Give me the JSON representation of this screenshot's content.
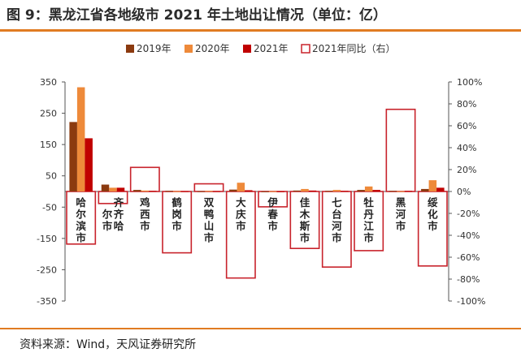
{
  "title": "图 9：黑龙江省各地级市 2021 年土地出让情况（单位：亿）",
  "source": "资料来源：Wind，天风证券研究所",
  "chart_data": {
    "type": "bar+line",
    "categories": [
      "哈尔滨市",
      "齐齐哈尔市",
      "鸡西市",
      "鹤岗市",
      "双鸭山市",
      "大庆市",
      "伊春市",
      "佳木斯市",
      "七台河市",
      "牡丹江市",
      "黑河市",
      "绥化市"
    ],
    "series": [
      {
        "name": "2019年",
        "axis": "left",
        "type": "bar",
        "color": "#8b3a0f",
        "values": [
          222,
          22,
          5,
          2,
          1,
          6,
          0.5,
          3,
          2,
          5,
          2,
          8
        ]
      },
      {
        "name": "2020年",
        "axis": "left",
        "type": "bar",
        "color": "#ee8a3a",
        "values": [
          333,
          12,
          3,
          1,
          2,
          28,
          1,
          8,
          5,
          16,
          1,
          36
        ]
      },
      {
        "name": "2021年",
        "axis": "left",
        "type": "bar",
        "color": "#c00000",
        "values": [
          170,
          12,
          2,
          1,
          1,
          4,
          0.5,
          3,
          2,
          5,
          2,
          12
        ]
      },
      {
        "name": "2021年同比（右）",
        "axis": "right",
        "type": "step-outline",
        "color": "#c8232c",
        "values": [
          -48,
          -11,
          22,
          -56,
          7,
          -79,
          -14,
          -52,
          -69,
          -54,
          75,
          -68
        ]
      }
    ],
    "left_axis": {
      "min": -350,
      "max": 350,
      "ticks": [
        350,
        250,
        150,
        50,
        -50,
        -150,
        -250,
        -350
      ]
    },
    "right_axis": {
      "min": -100,
      "max": 100,
      "ticks": [
        100,
        80,
        60,
        40,
        20,
        0,
        -20,
        -40,
        -60,
        -80,
        -100
      ],
      "format": "percent"
    },
    "legend_position": "top-center"
  }
}
